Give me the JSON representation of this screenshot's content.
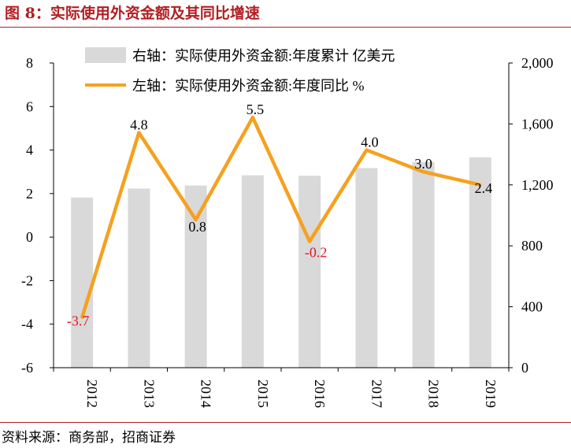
{
  "title": "图 8：实际使用外资金额及其同比增速",
  "source": "资料来源：商务部，招商证券",
  "colors": {
    "title": "#b21e23",
    "bar": "#d9d9d9",
    "line": "#f5a11f",
    "negative_label": "#e0191f",
    "label": "#000000"
  },
  "chart_data": {
    "type": "bar+line",
    "categories": [
      "2012",
      "2013",
      "2014",
      "2015",
      "2016",
      "2017",
      "2018",
      "2019"
    ],
    "series": [
      {
        "name": "右轴：实际使用外资金额:年度累计 亿美元",
        "type": "bar",
        "axis": "right",
        "values": [
          1117,
          1176,
          1196,
          1263,
          1260,
          1310,
          1350,
          1381
        ]
      },
      {
        "name": "左轴：实际使用外资金额:年度同比 %",
        "type": "line",
        "axis": "left",
        "values": [
          -3.7,
          4.8,
          0.8,
          5.5,
          -0.2,
          4.0,
          3.0,
          2.4
        ],
        "labels": [
          "-3.7",
          "4.8",
          "0.8",
          "5.5",
          "-0.2",
          "4.0",
          "3.0",
          "2.4"
        ]
      }
    ],
    "y_left": {
      "min": -6,
      "max": 8,
      "ticks": [
        "-6",
        "-4",
        "-2",
        "0",
        "2",
        "4",
        "6",
        "8"
      ]
    },
    "y_right": {
      "min": 0,
      "max": 2000,
      "ticks": [
        "0",
        "400",
        "800",
        "1,200",
        "1,600",
        "2,000"
      ]
    },
    "grid": false,
    "legend": "top"
  }
}
